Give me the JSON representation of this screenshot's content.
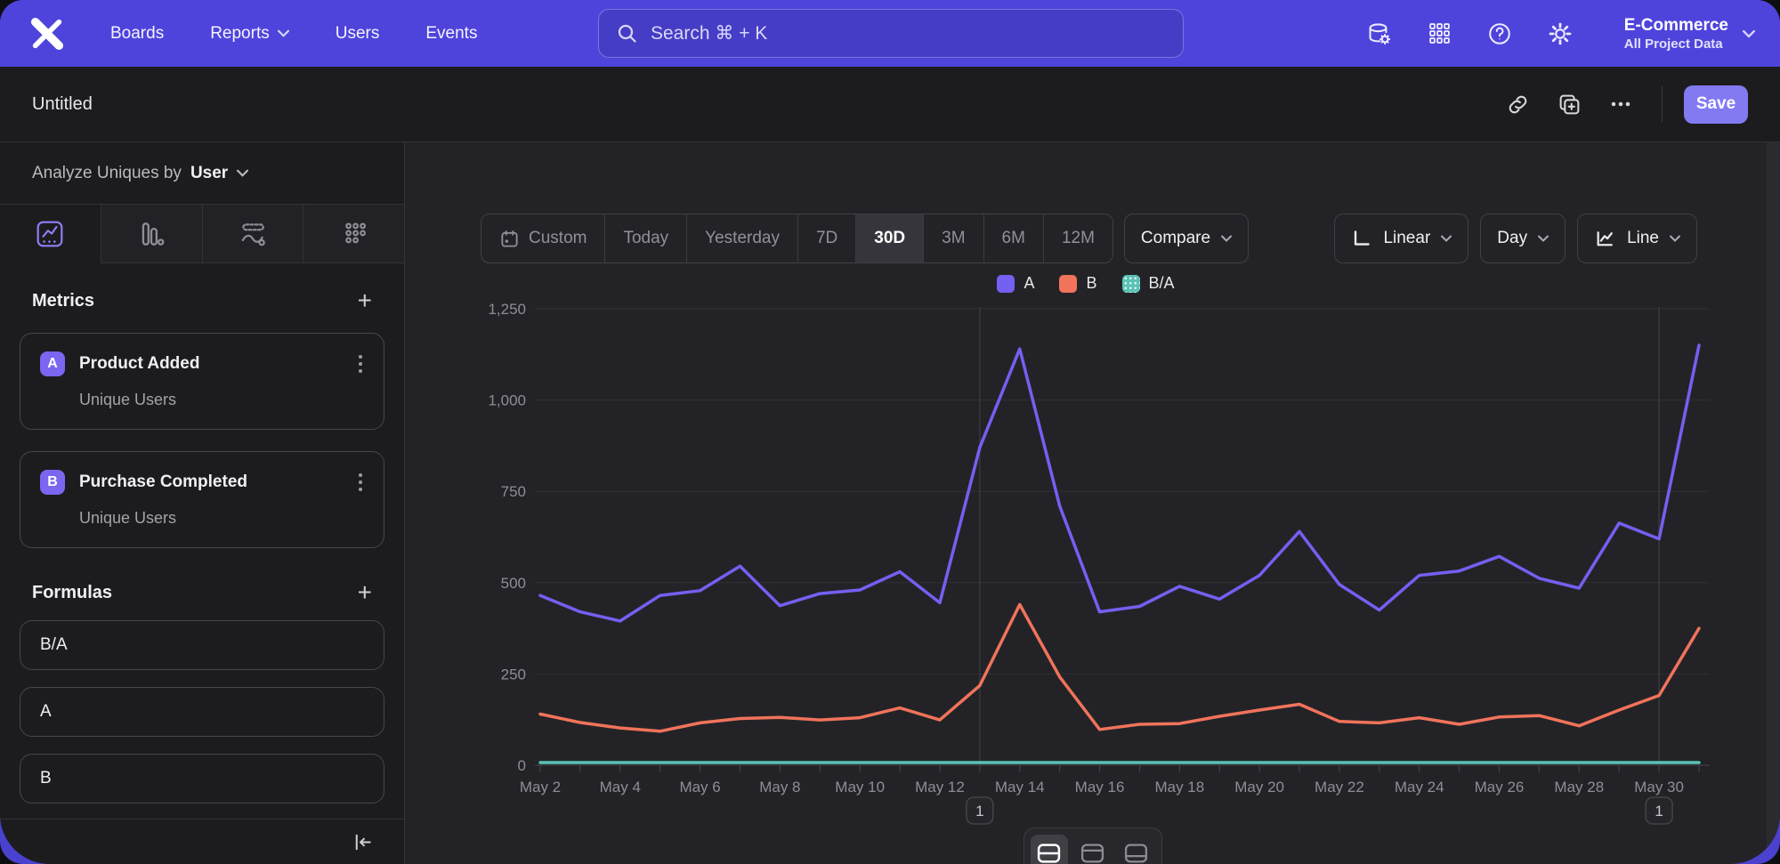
{
  "topnav": {
    "items": [
      "Boards",
      "Reports",
      "Users",
      "Events"
    ],
    "search_placeholder": "Search  ⌘ + K",
    "project": {
      "name": "E-Commerce",
      "scope": "All Project Data"
    }
  },
  "titlebar": {
    "title": "Untitled",
    "save_label": "Save"
  },
  "sidebar": {
    "analyze_prefix": "Analyze Uniques by",
    "analyze_value": "User",
    "metrics": {
      "header": "Metrics",
      "items": [
        {
          "letter": "A",
          "name": "Product Added",
          "measure": "Unique Users"
        },
        {
          "letter": "B",
          "name": "Purchase Completed",
          "measure": "Unique Users"
        }
      ]
    },
    "formulas": {
      "header": "Formulas",
      "items": [
        "B/A",
        "A",
        "B"
      ]
    }
  },
  "toolbar": {
    "date_ranges": [
      "Custom",
      "Today",
      "Yesterday",
      "7D",
      "30D",
      "3M",
      "6M",
      "12M"
    ],
    "active_range": "30D",
    "compare_label": "Compare",
    "scale_label": "Linear",
    "interval_label": "Day",
    "chart_type_label": "Line"
  },
  "legend": [
    {
      "label": "A",
      "color": "#7460f2"
    },
    {
      "label": "B",
      "color": "#f1735b"
    },
    {
      "label": "B/A",
      "color": "#59c3b5"
    }
  ],
  "annotations": [
    {
      "label": "1",
      "x_index": 11,
      "date": "May 13"
    },
    {
      "label": "1",
      "x_index": 28,
      "date": "May 30"
    }
  ],
  "chart_data": {
    "type": "line",
    "x": [
      "May 2",
      "May 3",
      "May 4",
      "May 5",
      "May 6",
      "May 7",
      "May 8",
      "May 9",
      "May 10",
      "May 11",
      "May 12",
      "May 13",
      "May 14",
      "May 15",
      "May 16",
      "May 17",
      "May 18",
      "May 19",
      "May 20",
      "May 21",
      "May 22",
      "May 23",
      "May 24",
      "May 25",
      "May 26",
      "May 27",
      "May 28",
      "May 29",
      "May 30",
      "May 31"
    ],
    "x_label_every": 2,
    "series": [
      {
        "name": "A",
        "color": "#7460f2",
        "values": [
          465,
          420,
          395,
          465,
          478,
          545,
          437,
          470,
          480,
          530,
          445,
          870,
          1140,
          710,
          420,
          435,
          490,
          455,
          520,
          640,
          495,
          425,
          520,
          532,
          572,
          512,
          485,
          663,
          620,
          1150
        ]
      },
      {
        "name": "B",
        "color": "#f1735b",
        "values": [
          140,
          117,
          102,
          93,
          116,
          128,
          131,
          124,
          130,
          157,
          124,
          218,
          440,
          242,
          98,
          112,
          114,
          134,
          151,
          167,
          120,
          116,
          130,
          112,
          132,
          136,
          108,
          151,
          191,
          375
        ]
      },
      {
        "name": "B/A",
        "color": "#59c3b5",
        "values": [
          0.3,
          0.28,
          0.26,
          0.2,
          0.24,
          0.23,
          0.3,
          0.26,
          0.27,
          0.3,
          0.28,
          0.25,
          0.39,
          0.34,
          0.23,
          0.26,
          0.23,
          0.29,
          0.29,
          0.26,
          0.24,
          0.27,
          0.25,
          0.21,
          0.23,
          0.27,
          0.22,
          0.23,
          0.31,
          0.33
        ]
      }
    ],
    "ylim": [
      0,
      1250
    ],
    "yticks": [
      0,
      250,
      500,
      750,
      1000,
      1250
    ],
    "grid": true,
    "legend_position": "top"
  }
}
